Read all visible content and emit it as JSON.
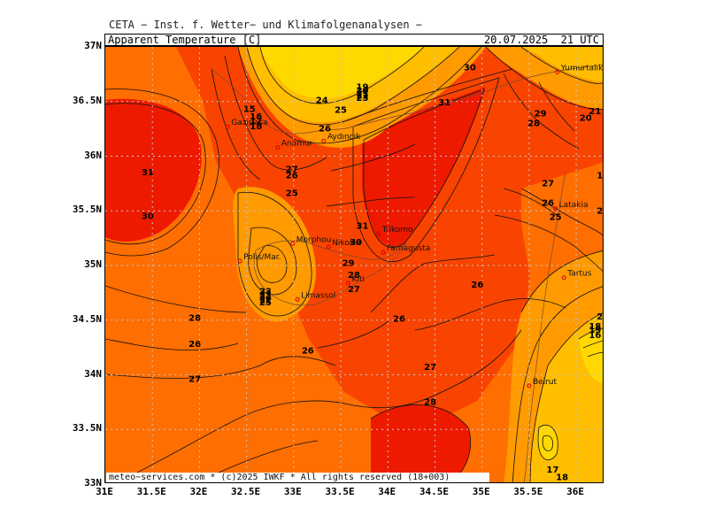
{
  "header": {
    "title": "CETA − Inst. f. Wetter− und Klimafolgenanalysen −",
    "variable": "Apparent_Temperature_[C]",
    "valid_time": "20.07.2025  21 UTC"
  },
  "footer": {
    "copyright": "meteo−services.com * (c)2025 IWKF * All rights reserved (18+003)"
  },
  "axes": {
    "lat_labels": [
      "37N",
      "36.5N",
      "36N",
      "35.5N",
      "35N",
      "34.5N",
      "34N",
      "33.5N",
      "33N"
    ],
    "lon_labels": [
      "31E",
      "31.5E",
      "32E",
      "32.5E",
      "33E",
      "33.5E",
      "34E",
      "34.5E",
      "35E",
      "35.5E",
      "36E"
    ],
    "lat_range": [
      33,
      37
    ],
    "lon_range": [
      31,
      36.3
    ],
    "grid": "dotted"
  },
  "colors": {
    "deep_red": "#ee1a00",
    "red_orange": "#f84400",
    "orange": "#ff6e00",
    "light_orange": "#ff9a00",
    "amber": "#ffbe00",
    "yellow": "#ffd800",
    "city_marker": "#d00000",
    "grid": "#c8c8c8"
  },
  "cities": [
    {
      "name": "Yumurtalık",
      "lon": 35.8,
      "lat": 36.77
    },
    {
      "name": "Gazipaşa",
      "lon": 32.3,
      "lat": 36.27
    },
    {
      "name": "Anamur",
      "lon": 32.83,
      "lat": 36.08
    },
    {
      "name": "Aydıncık",
      "lon": 33.32,
      "lat": 36.14
    },
    {
      "name": "Latakia",
      "lon": 35.78,
      "lat": 35.52
    },
    {
      "name": "Trikomo",
      "lon": 33.9,
      "lat": 35.29
    },
    {
      "name": "Morphou",
      "lon": 32.99,
      "lat": 35.2
    },
    {
      "name": "Nikosia",
      "lon": 33.37,
      "lat": 35.17
    },
    {
      "name": "Famagusta",
      "lon": 33.95,
      "lat": 35.12
    },
    {
      "name": "Polis/Mar.",
      "lon": 32.43,
      "lat": 35.04
    },
    {
      "name": "Tartus",
      "lon": 35.87,
      "lat": 34.89
    },
    {
      "name": "Kiti",
      "lon": 33.58,
      "lat": 34.84
    },
    {
      "name": "Limassol",
      "lon": 33.04,
      "lat": 34.69
    },
    {
      "name": "Beirut",
      "lon": 35.5,
      "lat": 33.9
    }
  ],
  "contour_labels": [
    {
      "t": "30",
      "lon": 34.87,
      "lat": 36.81
    },
    {
      "t": "15",
      "lon": 32.53,
      "lat": 36.43
    },
    {
      "t": "16",
      "lon": 32.6,
      "lat": 36.36
    },
    {
      "t": "17",
      "lon": 32.6,
      "lat": 36.32
    },
    {
      "t": "18",
      "lon": 32.6,
      "lat": 36.27
    },
    {
      "t": "19",
      "lon": 33.73,
      "lat": 36.63
    },
    {
      "t": "20",
      "lon": 33.73,
      "lat": 36.6
    },
    {
      "t": "21",
      "lon": 33.73,
      "lat": 36.57
    },
    {
      "t": "22",
      "lon": 33.73,
      "lat": 36.55
    },
    {
      "t": "23",
      "lon": 33.73,
      "lat": 36.53
    },
    {
      "t": "24",
      "lon": 33.3,
      "lat": 36.51
    },
    {
      "t": "25",
      "lon": 33.5,
      "lat": 36.42
    },
    {
      "t": "26",
      "lon": 33.33,
      "lat": 36.25
    },
    {
      "t": "31",
      "lon": 34.6,
      "lat": 36.49
    },
    {
      "t": "29",
      "lon": 35.62,
      "lat": 36.39
    },
    {
      "t": "28",
      "lon": 35.55,
      "lat": 36.3
    },
    {
      "t": "21",
      "lon": 36.2,
      "lat": 36.41
    },
    {
      "t": "20",
      "lon": 36.1,
      "lat": 36.35
    },
    {
      "t": "31",
      "lon": 31.45,
      "lat": 35.85
    },
    {
      "t": "27",
      "lon": 32.98,
      "lat": 35.88
    },
    {
      "t": "26",
      "lon": 32.98,
      "lat": 35.82
    },
    {
      "t": "25",
      "lon": 32.98,
      "lat": 35.66
    },
    {
      "t": "27",
      "lon": 35.7,
      "lat": 35.75
    },
    {
      "t": "26",
      "lon": 35.7,
      "lat": 35.57
    },
    {
      "t": "25",
      "lon": 35.78,
      "lat": 35.44
    },
    {
      "t": "30",
      "lon": 31.45,
      "lat": 35.45
    },
    {
      "t": "31",
      "lon": 33.73,
      "lat": 35.36
    },
    {
      "t": "30",
      "lon": 33.66,
      "lat": 35.21
    },
    {
      "t": "29",
      "lon": 33.58,
      "lat": 35.02
    },
    {
      "t": "28",
      "lon": 33.64,
      "lat": 34.91
    },
    {
      "t": "27",
      "lon": 33.64,
      "lat": 34.78
    },
    {
      "t": "26",
      "lon": 34.95,
      "lat": 34.82
    },
    {
      "t": "23",
      "lon": 32.7,
      "lat": 34.76
    },
    {
      "t": "24",
      "lon": 32.7,
      "lat": 34.71
    },
    {
      "t": "25",
      "lon": 32.7,
      "lat": 34.66
    },
    {
      "t": "22",
      "lon": 32.7,
      "lat": 34.68
    },
    {
      "t": "23",
      "lon": 32.7,
      "lat": 34.73
    },
    {
      "t": "28",
      "lon": 31.95,
      "lat": 34.52
    },
    {
      "t": "26",
      "lon": 34.12,
      "lat": 34.51
    },
    {
      "t": "26",
      "lon": 31.95,
      "lat": 34.28
    },
    {
      "t": "26",
      "lon": 33.15,
      "lat": 34.22
    },
    {
      "t": "27",
      "lon": 31.95,
      "lat": 33.96
    },
    {
      "t": "27",
      "lon": 34.45,
      "lat": 34.07
    },
    {
      "t": "28",
      "lon": 34.45,
      "lat": 33.75
    },
    {
      "t": "17",
      "lon": 35.75,
      "lat": 33.13
    },
    {
      "t": "18",
      "lon": 35.85,
      "lat": 33.06
    },
    {
      "t": "19",
      "lon": 36.2,
      "lat": 34.41
    },
    {
      "t": "18",
      "lon": 36.2,
      "lat": 34.44
    },
    {
      "t": "16",
      "lon": 36.2,
      "lat": 34.36
    },
    {
      "t": "2",
      "lon": 36.25,
      "lat": 34.53
    },
    {
      "t": "1",
      "lon": 36.25,
      "lat": 35.82
    },
    {
      "t": "2",
      "lon": 36.25,
      "lat": 35.5
    }
  ]
}
